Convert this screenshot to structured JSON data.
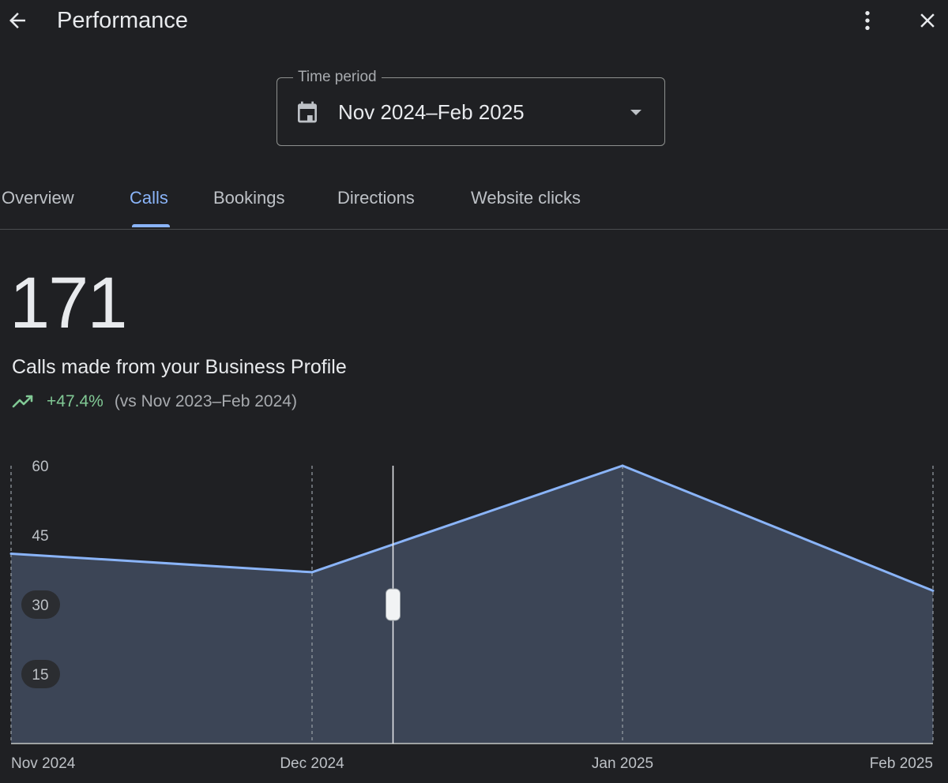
{
  "header": {
    "title": "Performance",
    "back_icon": "arrow-back-icon",
    "more_icon": "more-vert-icon",
    "close_icon": "close-icon"
  },
  "time_period": {
    "label": "Time period",
    "value": "Nov 2024–Feb 2025",
    "icon": "calendar-icon"
  },
  "tabs": [
    {
      "label": "Overview",
      "active": false
    },
    {
      "label": "Calls",
      "active": true
    },
    {
      "label": "Bookings",
      "active": false
    },
    {
      "label": "Directions",
      "active": false
    },
    {
      "label": "Website clicks",
      "active": false
    }
  ],
  "metric": {
    "value": "171",
    "label": "Calls made from your Business Profile",
    "trend_icon": "trending-up-icon",
    "change": "+47.4%",
    "comparison": "(vs Nov 2023–Feb 2024)"
  },
  "colors": {
    "background": "#1f2023",
    "accent": "#8ab4f8",
    "positive": "#81c995",
    "area_fill": "#3c4556"
  },
  "chart_data": {
    "type": "area",
    "categories": [
      "Nov 2024",
      "Dec 2024",
      "Jan 2025",
      "Feb 2025"
    ],
    "values": [
      41,
      37,
      60,
      33
    ],
    "ylim": [
      0,
      60
    ],
    "yticks": [
      60,
      45,
      30,
      15
    ],
    "grid": "vertical dashed",
    "cursor": {
      "position_between": [
        "Dec 2024",
        "Jan 2025"
      ],
      "fraction": 0.5
    }
  }
}
